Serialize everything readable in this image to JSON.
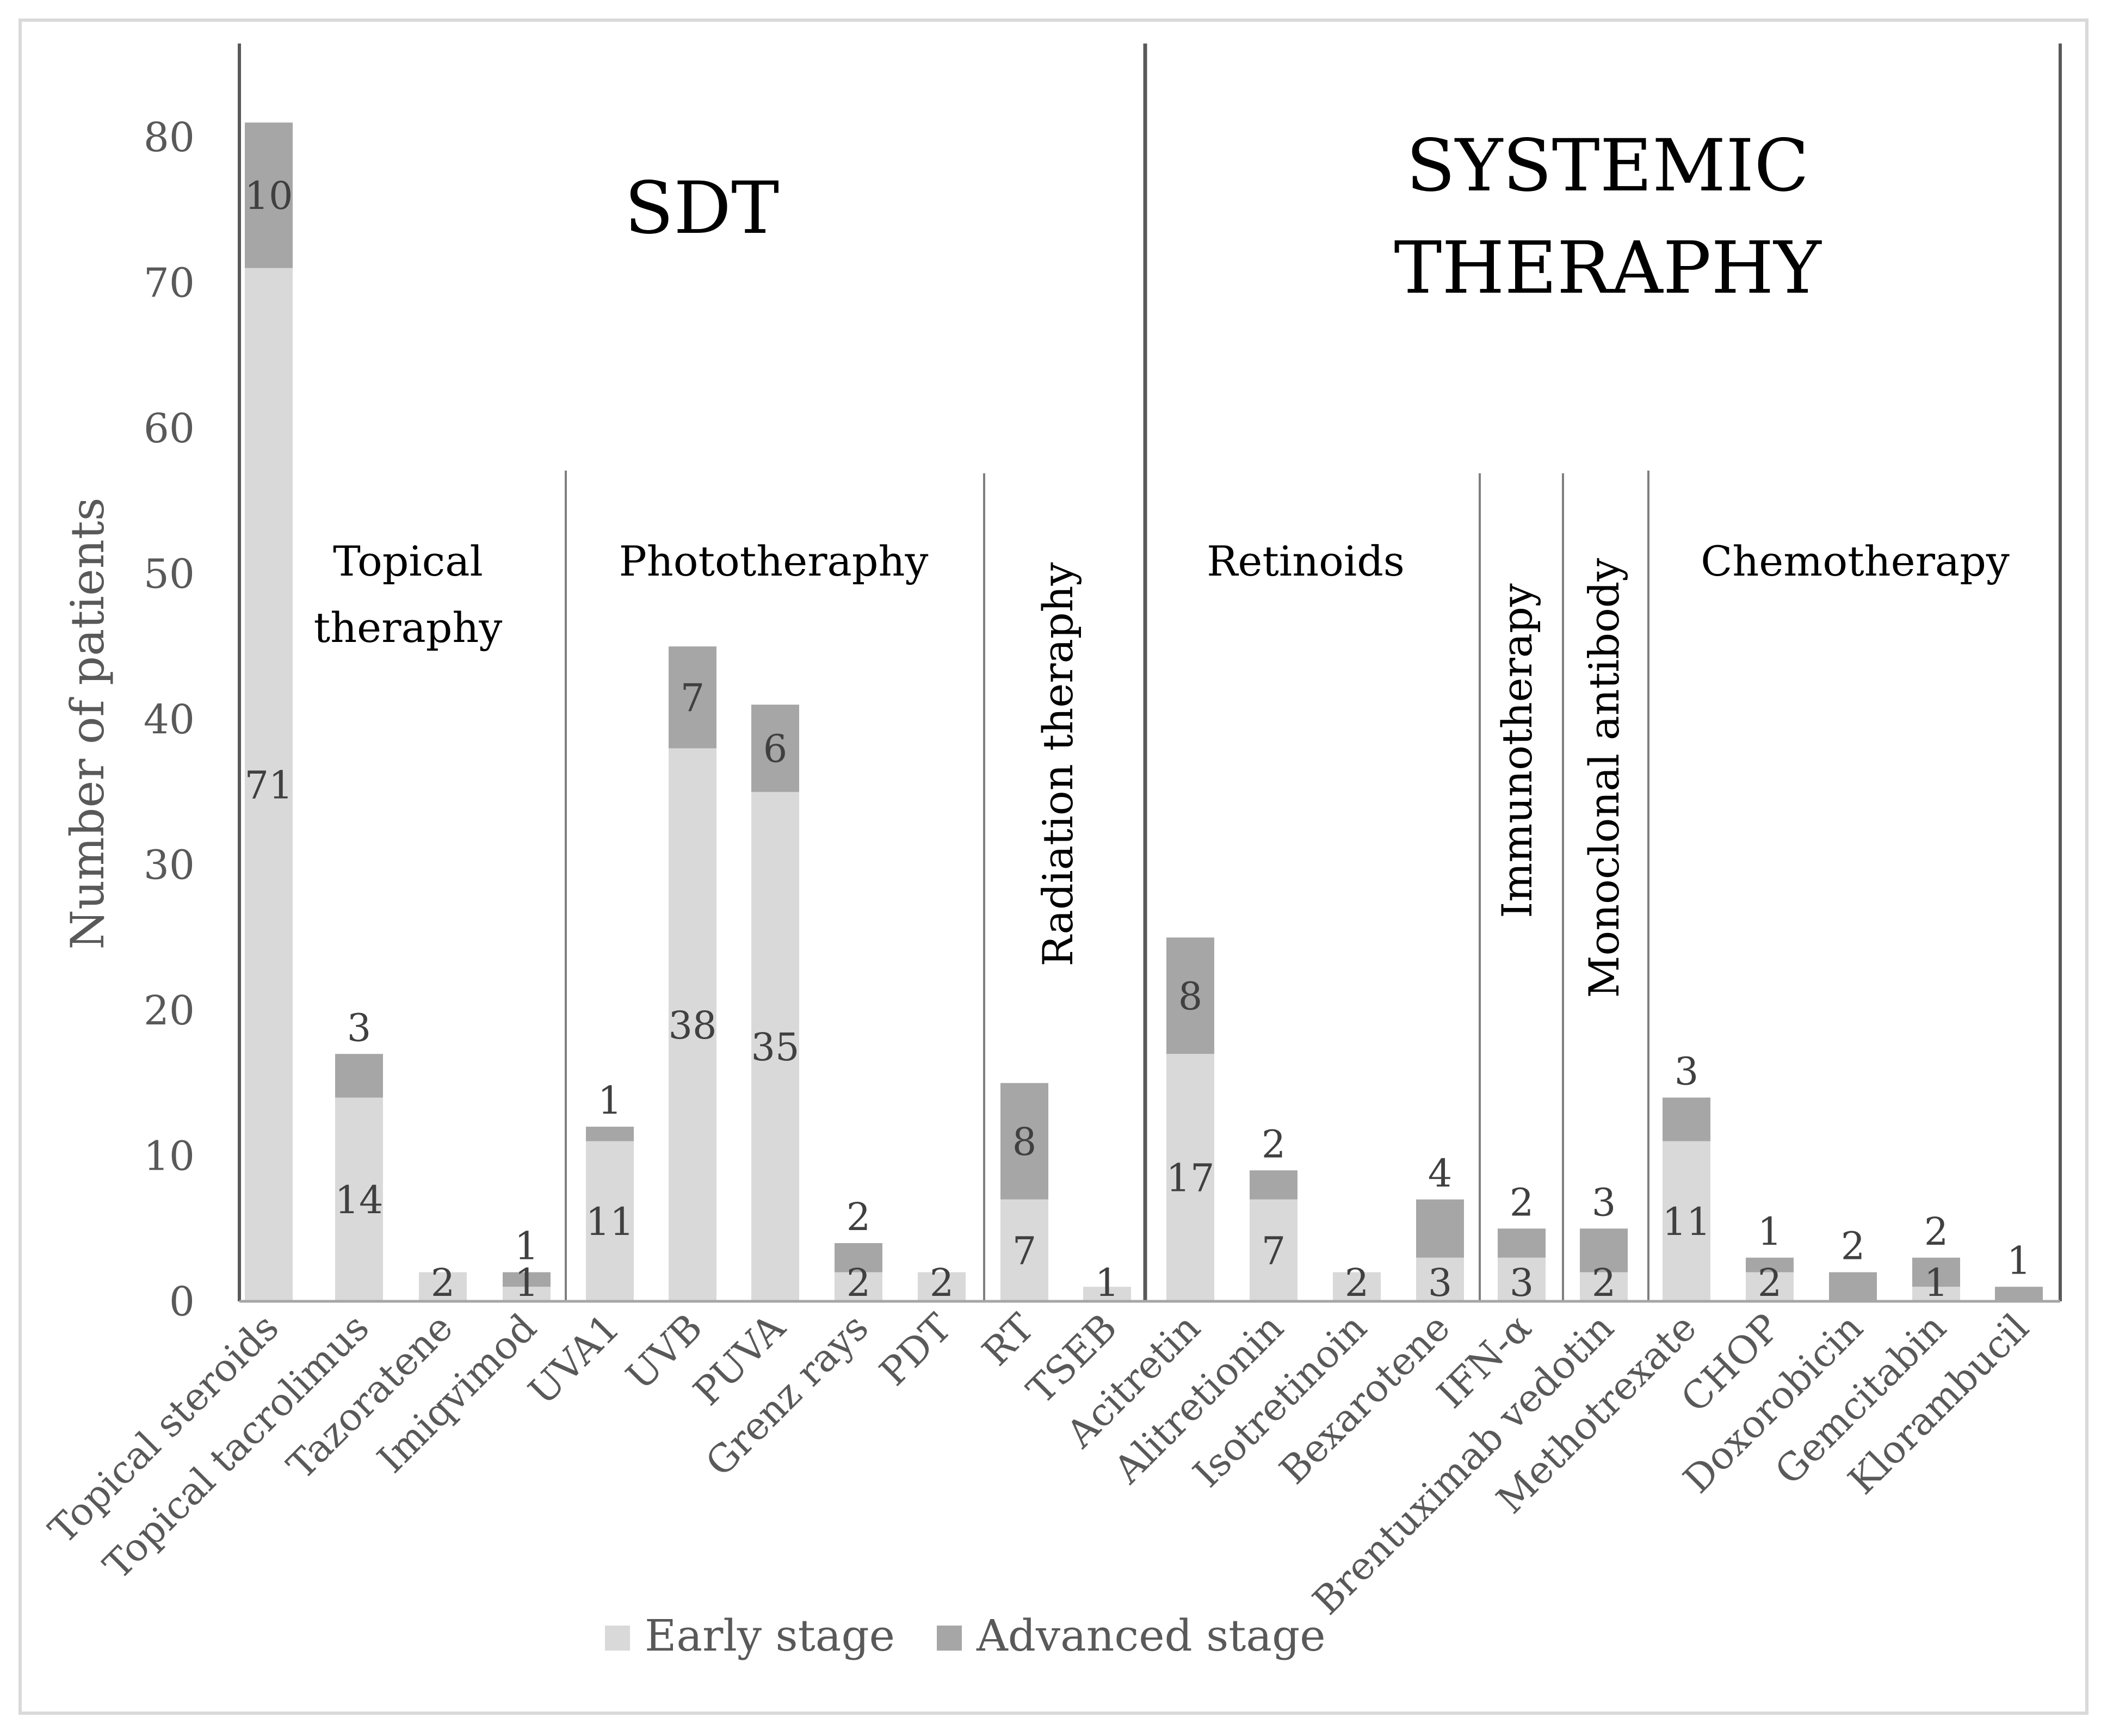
{
  "chart_data": {
    "type": "bar",
    "stacked": true,
    "title": "",
    "xlabel": "",
    "ylabel": "Number of patients",
    "ylim": [
      0,
      80
    ],
    "yticks": [
      0,
      10,
      20,
      30,
      40,
      50,
      60,
      70,
      80
    ],
    "grid": false,
    "legend_position": "bottom",
    "colors": {
      "early": "#d9d9d9",
      "advanced": "#a6a6a6",
      "axis": "#595959",
      "divider": "#7f7f7f",
      "text": "#000000",
      "value_text": "#404040"
    },
    "categories": [
      "Topical steroids",
      "Topical tacrolimus",
      "Tazoratene",
      "Imiqvimod",
      "UVA1",
      "UVB",
      "PUVA",
      "Grenz rays",
      "PDT",
      "RT",
      "TSEB",
      "Acitretin",
      "Alitretionin",
      "Isotretinoin",
      "Bexarotene",
      "IFN-α",
      "Brentuximab vedotin",
      "Methotrexate",
      "CHOP",
      "Doxorobicin",
      "Gemcitabin",
      "Klorambucil"
    ],
    "series": [
      {
        "name": "Early stage",
        "values": [
          71,
          14,
          2,
          1,
          11,
          38,
          35,
          2,
          2,
          7,
          1,
          17,
          7,
          2,
          3,
          3,
          2,
          11,
          2,
          0,
          1,
          0
        ]
      },
      {
        "name": "Advanced stage",
        "values": [
          10,
          3,
          0,
          1,
          1,
          7,
          6,
          2,
          0,
          8,
          0,
          8,
          2,
          0,
          4,
          2,
          3,
          3,
          1,
          2,
          2,
          1
        ]
      }
    ],
    "data_labels": {
      "early": [
        "71",
        "14",
        "2",
        "1",
        "11",
        "38",
        "35",
        "2",
        "2",
        "7",
        "1",
        "17",
        "7",
        "2",
        "3",
        "3",
        "2",
        "11",
        "2",
        "",
        "1",
        ""
      ],
      "advanced": [
        "10",
        "3",
        "",
        "1",
        "1",
        "7",
        "6",
        "2",
        "",
        "8",
        "",
        "8",
        "2",
        "",
        "4",
        "2",
        "3",
        "3",
        "1",
        "2",
        "2",
        "1"
      ]
    },
    "major_groups": [
      {
        "label_lines": [
          "SDT"
        ]
      },
      {
        "label_lines": [
          "SYSTEMIC",
          "THERAPHY"
        ]
      }
    ],
    "sub_groups": [
      {
        "label_lines": [
          "Topical",
          "theraphy"
        ],
        "orientation": "horizontal"
      },
      {
        "label_lines": [
          "Phototheraphy"
        ],
        "orientation": "horizontal"
      },
      {
        "label_lines": [
          "Radiation theraphy"
        ],
        "orientation": "vertical"
      },
      {
        "label_lines": [
          "Retinoids"
        ],
        "orientation": "horizontal"
      },
      {
        "label_lines": [
          "Immunotherapy"
        ],
        "orientation": "vertical"
      },
      {
        "label_lines": [
          "Monoclonal antibody"
        ],
        "orientation": "vertical"
      },
      {
        "label_lines": [
          "Chemotherapy"
        ],
        "orientation": "horizontal"
      }
    ]
  }
}
